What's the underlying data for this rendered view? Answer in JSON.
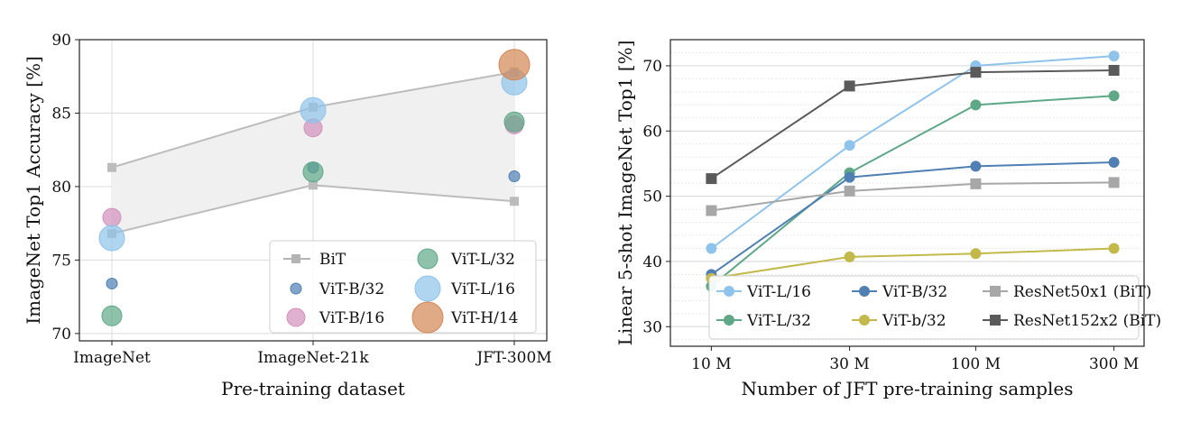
{
  "chart_data": [
    {
      "type": "scatter",
      "xlabel": "Pre-training dataset",
      "ylabel": "ImageNet Top1 Accuracy [%]",
      "categories": [
        "ImageNet",
        "ImageNet-21k",
        "JFT-300M"
      ],
      "ylim": [
        69.5,
        90
      ],
      "yticks": [
        70,
        75,
        80,
        85,
        90
      ],
      "grid": true,
      "legend_position": "lower-right",
      "bit_range": {
        "upper": [
          81.3,
          85.4,
          87.8
        ],
        "lower": [
          76.8,
          80.1,
          79.0
        ]
      },
      "series": [
        {
          "name": "BiT",
          "marker": "square-line",
          "color": "#b3b3b3",
          "values": [
            [
              81.3,
              76.8
            ],
            [
              85.4,
              80.1
            ],
            [
              87.8,
              79.0
            ]
          ]
        },
        {
          "name": "ViT-B/32",
          "color": "#4f7fb3",
          "size": 6,
          "values": [
            73.4,
            81.3,
            80.7
          ]
        },
        {
          "name": "ViT-B/16",
          "color": "#d28fbb",
          "size": 10,
          "values": [
            77.9,
            84.0,
            84.2
          ]
        },
        {
          "name": "ViT-L/32",
          "color": "#5ea888",
          "size": 11,
          "values": [
            71.2,
            81.0,
            84.4
          ]
        },
        {
          "name": "ViT-L/16",
          "color": "#8ec3eb",
          "size": 14,
          "values": [
            76.5,
            85.2,
            87.1
          ]
        },
        {
          "name": "ViT-H/14",
          "color": "#d48652",
          "size": 17,
          "values": [
            null,
            null,
            88.3
          ]
        }
      ]
    },
    {
      "type": "line",
      "xlabel": "Number of JFT pre-training samples",
      "ylabel": "Linear 5-shot ImageNet Top1 [%]",
      "x": [
        "10 M",
        "30 M",
        "100 M",
        "300 M"
      ],
      "x_values": [
        9,
        30,
        90,
        300
      ],
      "xscale": "log",
      "ylim": [
        27,
        74
      ],
      "yticks": [
        30,
        40,
        50,
        60,
        70
      ],
      "grid": true,
      "legend_position": "lower-right",
      "series": [
        {
          "name": "ViT-L/16",
          "marker": "circle",
          "color": "#8ec3eb",
          "values": [
            42.0,
            57.8,
            70.0,
            71.5
          ]
        },
        {
          "name": "ViT-L/32",
          "marker": "circle",
          "color": "#5ea888",
          "values": [
            36.2,
            53.6,
            64.0,
            65.4
          ]
        },
        {
          "name": "ViT-B/32",
          "marker": "circle",
          "color": "#4f7fb3",
          "values": [
            38.0,
            52.9,
            54.6,
            55.2
          ]
        },
        {
          "name": "ViT-b/32",
          "marker": "circle",
          "color": "#c2b94a",
          "values": [
            37.4,
            40.7,
            41.2,
            42.0
          ]
        },
        {
          "name": "ResNet50x1 (BiT)",
          "marker": "square",
          "color": "#a7a7a7",
          "values": [
            47.8,
            50.8,
            51.9,
            52.1
          ]
        },
        {
          "name": "ResNet152x2 (BiT)",
          "marker": "square",
          "color": "#5a5a5a",
          "values": [
            52.7,
            66.9,
            69.0,
            69.3
          ]
        }
      ]
    }
  ]
}
